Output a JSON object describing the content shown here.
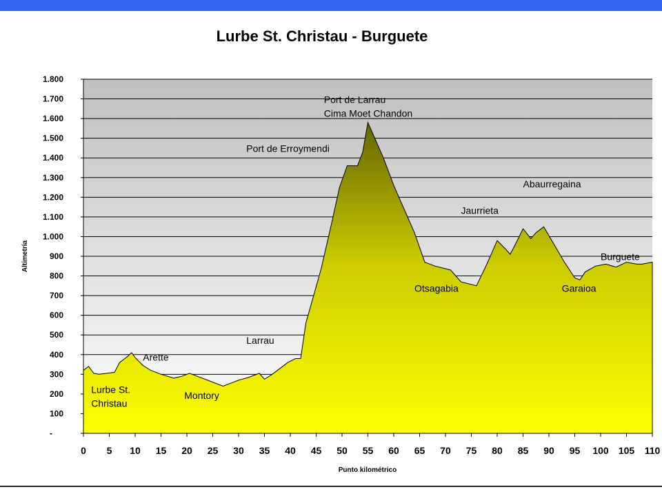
{
  "chart_data": {
    "type": "area",
    "title": "Lurbe St. Christau - Burguete",
    "xlabel": "Punto kilométrico",
    "ylabel": "Altimetría",
    "xlim": [
      0,
      110
    ],
    "ylim": [
      0,
      1800
    ],
    "x_ticks": [
      0,
      5,
      10,
      15,
      20,
      25,
      30,
      35,
      40,
      45,
      50,
      55,
      60,
      65,
      70,
      75,
      80,
      85,
      90,
      95,
      100,
      105,
      110
    ],
    "y_ticks": [
      {
        "value": 0,
        "label": "-"
      },
      {
        "value": 100,
        "label": "100"
      },
      {
        "value": 200,
        "label": "200"
      },
      {
        "value": 300,
        "label": "300"
      },
      {
        "value": 400,
        "label": "400"
      },
      {
        "value": 500,
        "label": "500"
      },
      {
        "value": 600,
        "label": "600"
      },
      {
        "value": 700,
        "label": "700"
      },
      {
        "value": 800,
        "label": "800"
      },
      {
        "value": 900,
        "label": "900"
      },
      {
        "value": 1000,
        "label": "1.000"
      },
      {
        "value": 1100,
        "label": "1.100"
      },
      {
        "value": 1200,
        "label": "1.200"
      },
      {
        "value": 1300,
        "label": "1.300"
      },
      {
        "value": 1400,
        "label": "1.400"
      },
      {
        "value": 1500,
        "label": "1.500"
      },
      {
        "value": 1600,
        "label": "1.600"
      },
      {
        "value": 1700,
        "label": "1.700"
      },
      {
        "value": 1800,
        "label": "1.800"
      }
    ],
    "grid": true,
    "series": [
      {
        "x": [
          0,
          1,
          2,
          3,
          4.5,
          6,
          7,
          8.5,
          9.3,
          10,
          11.5,
          13,
          15,
          17.5,
          19,
          20.5,
          22,
          24,
          26,
          27,
          28.5,
          30,
          32,
          34,
          35,
          36.5,
          38,
          39.5,
          41,
          42,
          43,
          44.5,
          46,
          48,
          49.5,
          51,
          53,
          54,
          55,
          56,
          58,
          60,
          62,
          64,
          66,
          68,
          69.5,
          71,
          73,
          74.5,
          76,
          78,
          80,
          81.5,
          82.5,
          83.5,
          85,
          86.5,
          87.5,
          89,
          91,
          93,
          95,
          96,
          97,
          99,
          101,
          103,
          105,
          107,
          108,
          110
        ],
        "y": [
          320,
          340,
          305,
          300,
          305,
          310,
          360,
          390,
          410,
          385,
          345,
          320,
          300,
          280,
          290,
          305,
          290,
          270,
          250,
          240,
          255,
          270,
          285,
          305,
          275,
          300,
          330,
          360,
          380,
          380,
          560,
          700,
          840,
          1070,
          1250,
          1360,
          1360,
          1430,
          1580,
          1520,
          1400,
          1260,
          1140,
          1020,
          870,
          850,
          840,
          830,
          770,
          760,
          750,
          860,
          980,
          940,
          910,
          960,
          1040,
          990,
          1020,
          1050,
          960,
          870,
          790,
          780,
          820,
          850,
          860,
          845,
          870,
          860,
          860,
          870
        ]
      }
    ],
    "annotations": [
      {
        "lines": [
          "Lurbe St.",
          "Christau"
        ],
        "x": 1.5,
        "y": 205
      },
      {
        "lines": [
          "Arette"
        ],
        "x": 11.5,
        "y": 370
      },
      {
        "lines": [
          "Montory"
        ],
        "x": 19.5,
        "y": 175
      },
      {
        "lines": [
          "Larrau"
        ],
        "x": 31.5,
        "y": 455
      },
      {
        "lines": [
          "Port de Erroymendi"
        ],
        "x": 31.5,
        "y": 1430
      },
      {
        "lines": [
          "Port de Larrau",
          "Cima Moet Chandon"
        ],
        "x": 46.5,
        "y": 1680
      },
      {
        "lines": [
          "Otsagabia"
        ],
        "x": 64,
        "y": 720
      },
      {
        "lines": [
          "Jaurrieta"
        ],
        "x": 73,
        "y": 1115
      },
      {
        "lines": [
          "Abaurregaina"
        ],
        "x": 85,
        "y": 1250
      },
      {
        "lines": [
          "Garaioa"
        ],
        "x": 92.5,
        "y": 720
      },
      {
        "lines": [
          "Burguete"
        ],
        "x": 100,
        "y": 880
      }
    ]
  }
}
